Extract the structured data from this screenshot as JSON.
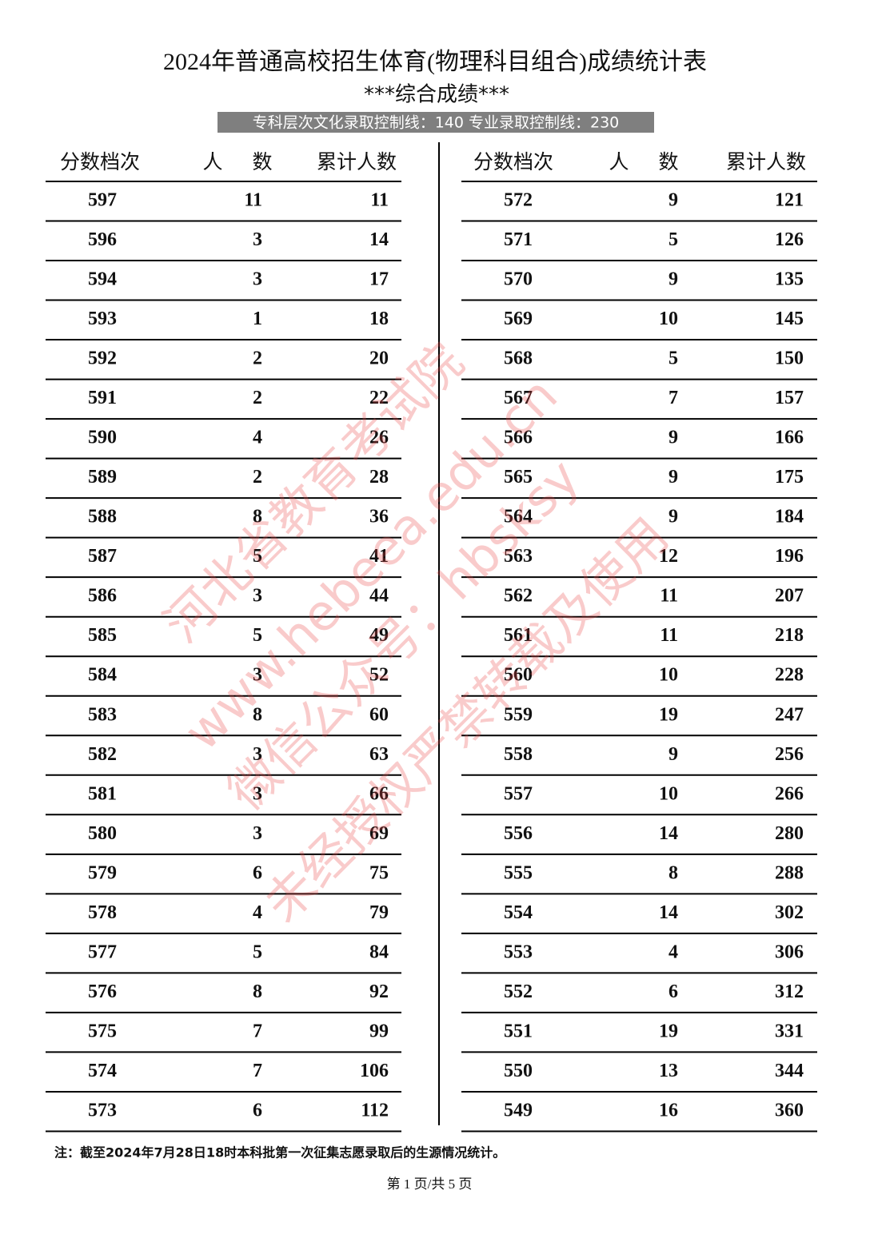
{
  "header": {
    "title": "2024年普通高校招生体育(物理科目组合)成绩统计表",
    "subtitle": "***综合成绩***",
    "banner": "专科层次文化录取控制线：140 专业录取控制线：230"
  },
  "columns": [
    "分数档次",
    "人　数",
    "累计人数"
  ],
  "left": {
    "rows": [
      [
        597,
        11,
        11
      ],
      [
        596,
        3,
        14
      ],
      [
        594,
        3,
        17
      ],
      [
        593,
        1,
        18
      ],
      [
        592,
        2,
        20
      ],
      [
        591,
        2,
        22
      ],
      [
        590,
        4,
        26
      ],
      [
        589,
        2,
        28
      ],
      [
        588,
        8,
        36
      ],
      [
        587,
        5,
        41
      ],
      [
        586,
        3,
        44
      ],
      [
        585,
        5,
        49
      ],
      [
        584,
        3,
        52
      ],
      [
        583,
        8,
        60
      ],
      [
        582,
        3,
        63
      ],
      [
        581,
        3,
        66
      ],
      [
        580,
        3,
        69
      ],
      [
        579,
        6,
        75
      ],
      [
        578,
        4,
        79
      ],
      [
        577,
        5,
        84
      ],
      [
        576,
        8,
        92
      ],
      [
        575,
        7,
        99
      ],
      [
        574,
        7,
        106
      ],
      [
        573,
        6,
        112
      ]
    ]
  },
  "right": {
    "rows": [
      [
        572,
        9,
        121
      ],
      [
        571,
        5,
        126
      ],
      [
        570,
        9,
        135
      ],
      [
        569,
        10,
        145
      ],
      [
        568,
        5,
        150
      ],
      [
        567,
        7,
        157
      ],
      [
        566,
        9,
        166
      ],
      [
        565,
        9,
        175
      ],
      [
        564,
        9,
        184
      ],
      [
        563,
        12,
        196
      ],
      [
        562,
        11,
        207
      ],
      [
        561,
        11,
        218
      ],
      [
        560,
        10,
        228
      ],
      [
        559,
        19,
        247
      ],
      [
        558,
        9,
        256
      ],
      [
        557,
        10,
        266
      ],
      [
        556,
        14,
        280
      ],
      [
        555,
        8,
        288
      ],
      [
        554,
        14,
        302
      ],
      [
        553,
        4,
        306
      ],
      [
        552,
        6,
        312
      ],
      [
        551,
        19,
        331
      ],
      [
        550,
        13,
        344
      ],
      [
        549,
        16,
        360
      ]
    ]
  },
  "note": "注：截至2024年7月28日18时本科批第一次征集志愿录取后的生源情况统计。",
  "footer": "第 1 页/共 5 页",
  "watermark": [
    "河北省教育考试院",
    "www.hebeea.edu.cn",
    "微信公众号：hbsksy",
    "未经授权严禁转载及使用"
  ]
}
